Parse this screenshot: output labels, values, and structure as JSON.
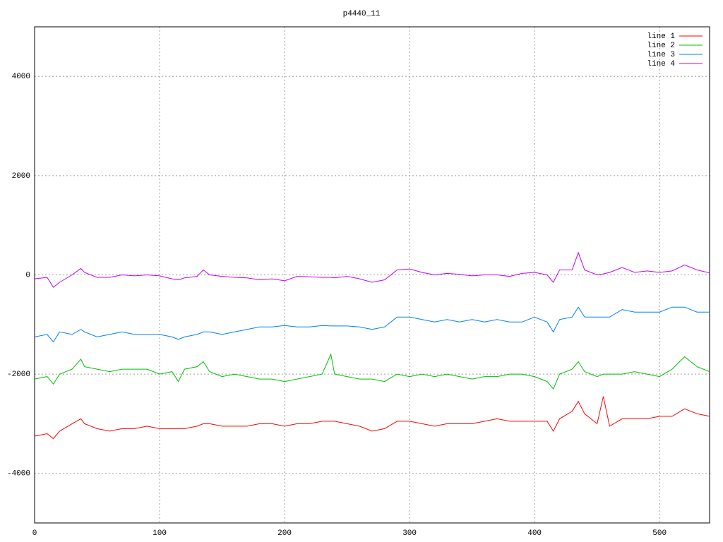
{
  "chart_data": {
    "type": "line",
    "title": "p4440_11",
    "x": [
      0,
      10,
      15,
      20,
      30,
      37,
      40,
      50,
      60,
      70,
      80,
      90,
      100,
      110,
      115,
      120,
      130,
      135,
      140,
      150,
      160,
      170,
      180,
      190,
      200,
      210,
      220,
      230,
      237,
      240,
      250,
      260,
      270,
      280,
      290,
      300,
      310,
      320,
      330,
      340,
      350,
      360,
      370,
      380,
      390,
      400,
      410,
      415,
      420,
      430,
      435,
      440,
      450,
      455,
      460,
      470,
      480,
      490,
      500,
      510,
      520,
      530,
      540
    ],
    "series": [
      {
        "name": "line 1",
        "color": "#ff0000",
        "values": [
          -3250,
          -3200,
          -3300,
          -3150,
          -3000,
          -2900,
          -3000,
          -3100,
          -3150,
          -3100,
          -3100,
          -3050,
          -3100,
          -3100,
          -3100,
          -3100,
          -3050,
          -3000,
          -3000,
          -3050,
          -3050,
          -3050,
          -3000,
          -3000,
          -3050,
          -3000,
          -3000,
          -2950,
          -2950,
          -2950,
          -3000,
          -3050,
          -3150,
          -3100,
          -2950,
          -2950,
          -3000,
          -3050,
          -3000,
          -3000,
          -3000,
          -2950,
          -2900,
          -2950,
          -2950,
          -2950,
          -2950,
          -3150,
          -2900,
          -2750,
          -2550,
          -2800,
          -3000,
          -2450,
          -3050,
          -2900,
          -2900,
          -2900,
          -2850,
          -2850,
          -2700,
          -2800,
          -2850
        ]
      },
      {
        "name": "line 2",
        "color": "#00c000",
        "values": [
          -2100,
          -2050,
          -2200,
          -2000,
          -1900,
          -1700,
          -1850,
          -1900,
          -1950,
          -1900,
          -1900,
          -1900,
          -2000,
          -1950,
          -2150,
          -1900,
          -1850,
          -1750,
          -1950,
          -2050,
          -2000,
          -2050,
          -2100,
          -2100,
          -2150,
          -2100,
          -2050,
          -2000,
          -1600,
          -2000,
          -2050,
          -2100,
          -2100,
          -2150,
          -2000,
          -2050,
          -2000,
          -2050,
          -2000,
          -2050,
          -2100,
          -2050,
          -2050,
          -2000,
          -2000,
          -2050,
          -2150,
          -2300,
          -2000,
          -1900,
          -1750,
          -1950,
          -2050,
          -2000,
          -2000,
          -2000,
          -1950,
          -2000,
          -2050,
          -1900,
          -1650,
          -1850,
          -1950
        ]
      },
      {
        "name": "line 3",
        "color": "#0080ff",
        "values": [
          -1250,
          -1200,
          -1350,
          -1150,
          -1200,
          -1100,
          -1150,
          -1250,
          -1200,
          -1150,
          -1200,
          -1200,
          -1200,
          -1250,
          -1300,
          -1250,
          -1200,
          -1150,
          -1150,
          -1200,
          -1150,
          -1100,
          -1050,
          -1050,
          -1020,
          -1050,
          -1050,
          -1020,
          -1030,
          -1030,
          -1030,
          -1050,
          -1100,
          -1050,
          -850,
          -850,
          -900,
          -950,
          -900,
          -950,
          -900,
          -950,
          -900,
          -950,
          -950,
          -850,
          -950,
          -1150,
          -900,
          -850,
          -650,
          -850,
          -850,
          -850,
          -850,
          -700,
          -750,
          -750,
          -750,
          -650,
          -650,
          -750,
          -750
        ]
      },
      {
        "name": "line 4",
        "color": "#c000ff",
        "values": [
          -80,
          -50,
          -250,
          -150,
          0,
          130,
          50,
          -50,
          -50,
          0,
          -20,
          0,
          -20,
          -80,
          -100,
          -60,
          -30,
          100,
          0,
          -30,
          -50,
          -60,
          -100,
          -80,
          -120,
          -30,
          -40,
          -50,
          -50,
          -60,
          -30,
          -80,
          -150,
          -100,
          100,
          120,
          50,
          0,
          30,
          10,
          -20,
          0,
          0,
          -30,
          30,
          50,
          0,
          -150,
          100,
          100,
          450,
          100,
          0,
          20,
          50,
          150,
          50,
          80,
          50,
          80,
          200,
          100,
          40
        ]
      }
    ],
    "xlim": [
      0,
      540
    ],
    "ylim": [
      -5000,
      5000
    ],
    "xticks": [
      0,
      100,
      200,
      300,
      400,
      500
    ],
    "yticks": [
      -4000,
      -2000,
      0,
      2000,
      4000
    ],
    "grid": true,
    "legend": "top right"
  }
}
